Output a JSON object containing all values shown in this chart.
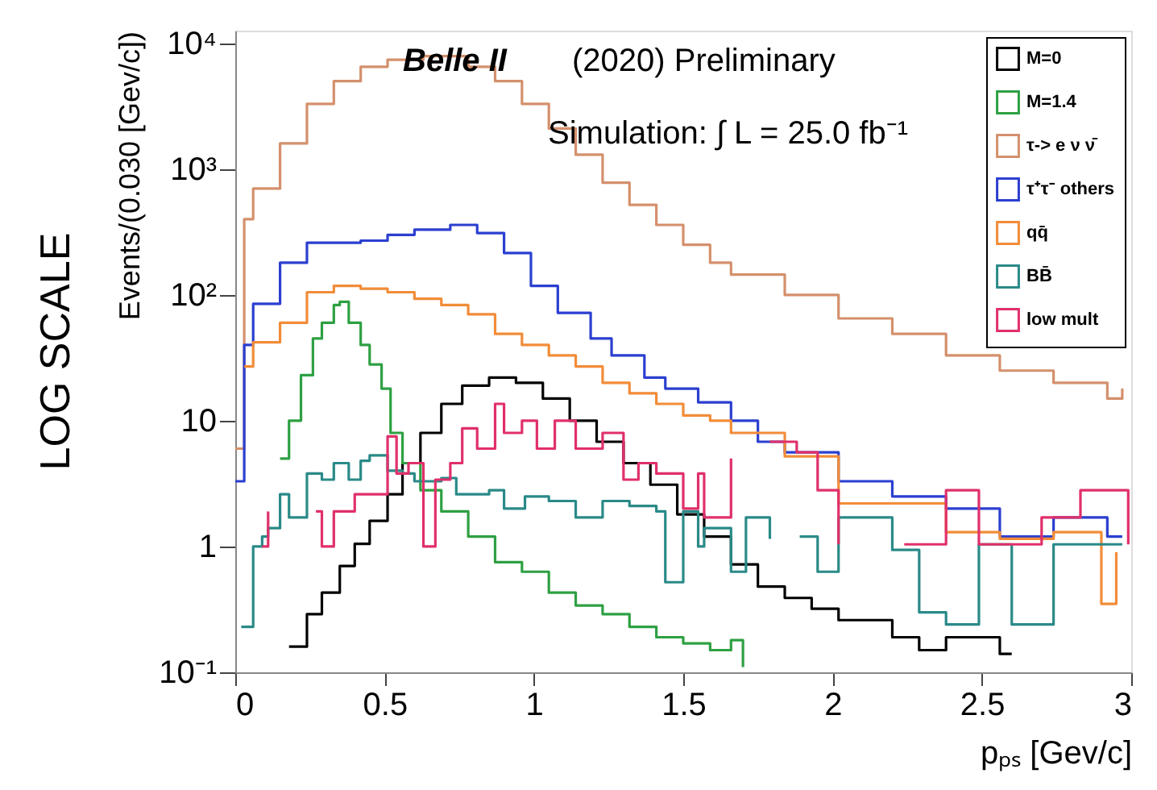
{
  "chart_data": {
    "type": "step",
    "annotations": [
      "Belle II",
      "(2020) Preliminary",
      "Simulation: ∫ L = 25.0 fb⁻¹",
      "LOG SCALE"
    ],
    "xlabel": "pₚₛ [Gev/c]",
    "ylabel": "Events/(0.030 [Gev/c])",
    "xlim": [
      0,
      3
    ],
    "xticks": [
      0,
      0.5,
      1,
      1.5,
      2,
      2.5,
      3
    ],
    "ylim": [
      0.1,
      12600
    ],
    "log": true,
    "yticks": [
      {
        "value": 0.1,
        "label": "10⁻¹"
      },
      1,
      10,
      {
        "value": 100,
        "label": "10²"
      },
      {
        "value": 1000,
        "label": "10³"
      },
      {
        "value": 10000,
        "label": "10⁴"
      }
    ],
    "legend": "top right",
    "grid": false,
    "line_style": "solid",
    "series": [
      {
        "name": "M=0",
        "color": "#000000",
        "x": [
          0.18,
          0.24,
          0.29,
          0.35,
          0.4,
          0.45,
          0.51,
          0.56,
          0.62,
          0.69,
          0.76,
          0.85,
          0.94,
          1.03,
          1.12,
          1.21,
          1.3,
          1.39,
          1.48,
          1.57,
          1.66,
          1.75,
          1.84,
          1.93,
          2.02,
          2.2,
          2.29,
          2.38,
          2.56,
          2.6
        ],
        "values": [
          0.16,
          0.29,
          0.43,
          0.7,
          1.05,
          1.6,
          2.6,
          4.6,
          8,
          13.6,
          19,
          22,
          20,
          15,
          10,
          6.8,
          4.6,
          3.1,
          1.8,
          1.2,
          0.72,
          0.48,
          0.39,
          0.32,
          0.26,
          0.19,
          0.15,
          0.19,
          0.14,
          0.14
        ]
      },
      {
        "name": "M=1.4",
        "color": "#2ea043",
        "x": [
          0.15,
          0.18,
          0.22,
          0.26,
          0.29,
          0.33,
          0.35,
          0.38,
          0.42,
          0.45,
          0.49,
          0.52,
          0.56,
          0.62,
          0.69,
          0.78,
          0.87,
          0.96,
          1.05,
          1.14,
          1.23,
          1.32,
          1.41,
          1.5,
          1.59,
          1.66,
          1.7
        ],
        "values": [
          5,
          10,
          23,
          45,
          60,
          83,
          88,
          60,
          40,
          28,
          18,
          8,
          4.6,
          2.8,
          1.9,
          1.2,
          0.75,
          0.63,
          0.43,
          0.34,
          0.29,
          0.23,
          0.19,
          0.17,
          0.15,
          0.18,
          0.11
        ]
      },
      {
        "name": "τ-> e ν ν̄",
        "color": "#d4906c",
        "x": [
          0,
          0.03,
          0.06,
          0.15,
          0.24,
          0.33,
          0.42,
          0.51,
          0.63,
          0.78,
          0.87,
          0.96,
          1.05,
          1.14,
          1.23,
          1.32,
          1.41,
          1.5,
          1.59,
          1.66,
          1.84,
          2.02,
          2.2,
          2.38,
          2.56,
          2.74,
          2.92,
          2.97
        ],
        "values": [
          6,
          400,
          700,
          1600,
          3300,
          5000,
          6500,
          7400,
          7900,
          6500,
          5000,
          3300,
          2100,
          1300,
          780,
          520,
          360,
          250,
          180,
          145,
          100,
          65,
          49,
          33,
          25,
          20,
          15,
          18
        ]
      },
      {
        "name": "τ⁺τ⁻ others",
        "color": "#2b3fd0",
        "x": [
          0,
          0.03,
          0.06,
          0.15,
          0.24,
          0.33,
          0.42,
          0.51,
          0.6,
          0.72,
          0.81,
          0.9,
          0.99,
          1.08,
          1.19,
          1.26,
          1.37,
          1.44,
          1.55,
          1.66,
          1.75,
          1.84,
          2.02,
          2.2,
          2.38,
          2.56,
          2.74,
          2.92,
          2.97
        ],
        "values": [
          3.3,
          40,
          85,
          180,
          260,
          260,
          270,
          300,
          330,
          360,
          310,
          215,
          118,
          72,
          45,
          33,
          22,
          18,
          14,
          10,
          6.8,
          5.6,
          3.3,
          2.5,
          2,
          1.2,
          1.7,
          1.2,
          1.2
        ]
      },
      {
        "name": "qq̄",
        "color": "#f28c38",
        "x": [
          0.03,
          0.06,
          0.15,
          0.24,
          0.33,
          0.42,
          0.51,
          0.6,
          0.69,
          0.78,
          0.87,
          0.96,
          1.05,
          1.14,
          1.23,
          1.32,
          1.41,
          1.5,
          1.59,
          1.66,
          1.84,
          2.02,
          2.2,
          2.38,
          2.56,
          2.74,
          2.9,
          2.95
        ],
        "values": [
          27,
          42,
          60,
          105,
          118,
          112,
          105,
          93,
          83,
          70,
          49,
          40,
          33,
          27,
          20,
          16.5,
          13.6,
          11,
          10,
          8,
          5.2,
          2.2,
          2.2,
          1.3,
          1.15,
          1.3,
          0.35,
          0.9
        ]
      },
      {
        "name": "BB̄",
        "color": "#2a8a88",
        "x": [
          0.02,
          0.06,
          0.09,
          0.11,
          0.15,
          0.18,
          0.24,
          0.29,
          0.33,
          0.38,
          0.42,
          0.45,
          0.51,
          0.56,
          0.6,
          0.69,
          0.74,
          0.85,
          0.9,
          0.97,
          1.05,
          1.14,
          1.23,
          1.32,
          1.41,
          1.44,
          1.5,
          1.55,
          1.57,
          1.66,
          1.71,
          1.79,
          1.84,
          1.89,
          1.95,
          2.02,
          2.2,
          2.29,
          2.38,
          2.49,
          2.6,
          2.74,
          2.92,
          2.97
        ],
        "values": [
          0.23,
          1,
          1.2,
          1.4,
          2.6,
          1.7,
          3.8,
          3.4,
          4.6,
          3.4,
          4.8,
          5.3,
          4,
          3.8,
          3.3,
          3.5,
          2.6,
          2.8,
          2,
          2.5,
          2.3,
          1.7,
          2.3,
          2.1,
          1.9,
          0.52,
          1.9,
          1,
          1.4,
          0.63,
          1.7,
          1.15,
          null,
          1.2,
          0.63,
          1.7,
          0.94,
          0.3,
          0.24,
          1.04,
          0.24,
          1.04,
          1.04,
          1.04
        ]
      },
      {
        "name": "low mult",
        "color": "#e0306a",
        "x": [
          0.09,
          0.11,
          0.24,
          0.27,
          0.29,
          0.33,
          0.4,
          0.51,
          0.54,
          0.58,
          0.63,
          0.67,
          0.72,
          0.76,
          0.81,
          0.87,
          0.9,
          0.96,
          1.01,
          1.07,
          1.14,
          1.23,
          1.3,
          1.35,
          1.41,
          1.5,
          1.55,
          1.57,
          1.66,
          1.71,
          1.79,
          1.88,
          1.95,
          2.02,
          2.11,
          2.24,
          2.38,
          2.49,
          2.6,
          2.7,
          2.83,
          2.92,
          2.99
        ],
        "values": [
          1,
          1.9,
          null,
          1.9,
          1,
          1.9,
          2.6,
          7.5,
          3.8,
          4.6,
          1,
          3.4,
          4.6,
          8.7,
          6,
          13.6,
          8,
          10,
          6,
          10,
          6,
          8,
          3.4,
          4.6,
          3.8,
          2,
          3.8,
          1.7,
          5,
          null,
          6.8,
          5.6,
          2.8,
          1.04,
          null,
          1.04,
          2.8,
          1.04,
          1.04,
          1.7,
          2.8,
          2.8,
          1.04
        ]
      }
    ]
  }
}
